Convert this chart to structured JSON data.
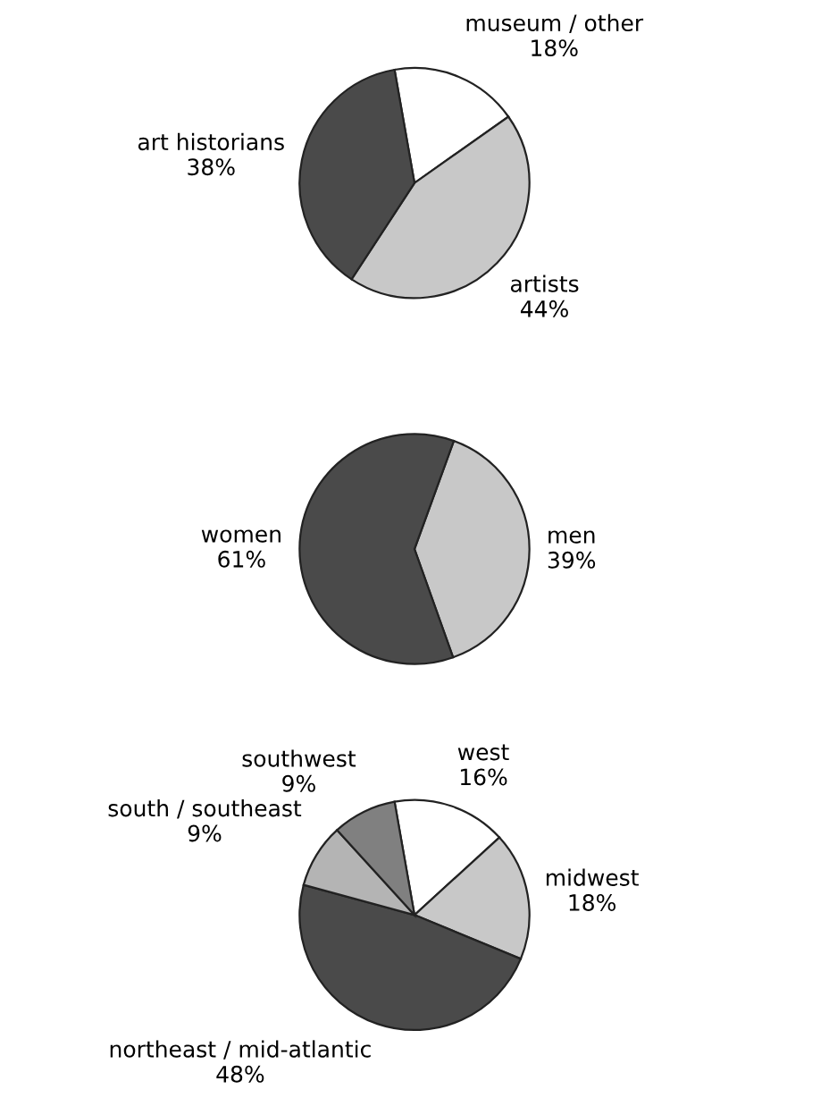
{
  "chart_data": [
    {
      "type": "pie",
      "categories": [
        "museum / other",
        "artists",
        "art historians"
      ],
      "values": [
        18,
        44,
        38
      ],
      "value_labels": [
        "18%",
        "44%",
        "38%"
      ],
      "colors": [
        "#ffffff",
        "#c8c8c8",
        "#4a4a4a"
      ]
    },
    {
      "type": "pie",
      "categories": [
        "men",
        "women"
      ],
      "values": [
        39,
        61
      ],
      "value_labels": [
        "39%",
        "61%"
      ],
      "colors": [
        "#c8c8c8",
        "#4a4a4a"
      ]
    },
    {
      "type": "pie",
      "categories": [
        "west",
        "midwest",
        "northeast / mid-atlantic",
        "south / southeast",
        "southwest"
      ],
      "values": [
        16,
        18,
        48,
        9,
        9
      ],
      "value_labels": [
        "16%",
        "18%",
        "48%",
        "9%",
        "9%"
      ],
      "colors": [
        "#ffffff",
        "#c8c8c8",
        "#4a4a4a",
        "#b4b4b4",
        "#808080"
      ]
    }
  ]
}
